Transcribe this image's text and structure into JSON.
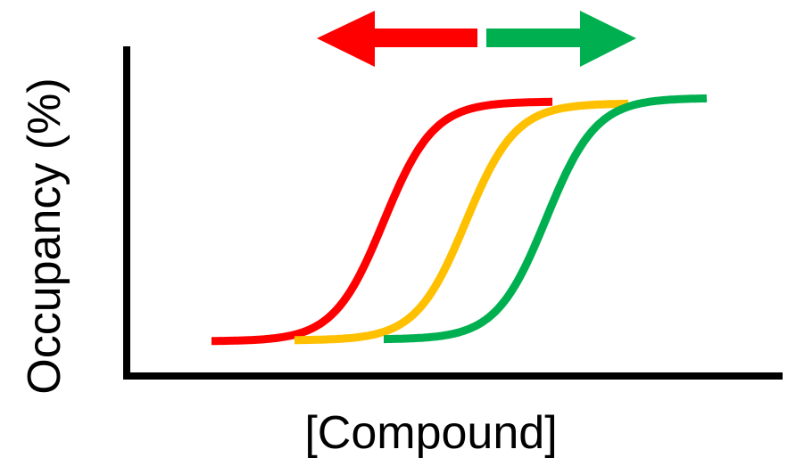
{
  "axes": {
    "y_label": "Occupancy (%)",
    "x_label": "[Compound]"
  },
  "curves": [
    {
      "color": "#FF0000",
      "position": "left-shifted"
    },
    {
      "color": "#FFC000",
      "position": "reference"
    },
    {
      "color": "#00B050",
      "position": "right-shifted"
    }
  ],
  "arrows": [
    {
      "direction": "left",
      "color": "#FF0000"
    },
    {
      "direction": "right",
      "color": "#00B050"
    }
  ],
  "colors": {
    "axis": "#000000"
  }
}
